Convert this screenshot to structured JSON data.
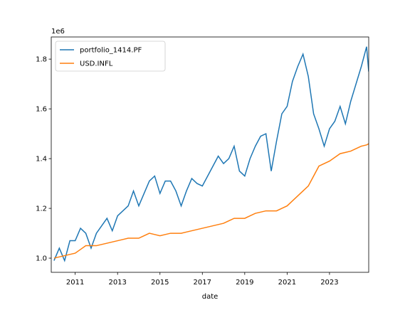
{
  "chart_data": {
    "type": "line",
    "xlabel": "date",
    "offset_text": "1e6",
    "x": [
      2010.0,
      2010.25,
      2010.5,
      2010.75,
      2011.0,
      2011.25,
      2011.5,
      2011.75,
      2012.0,
      2012.25,
      2012.5,
      2012.75,
      2013.0,
      2013.25,
      2013.5,
      2013.75,
      2014.0,
      2014.25,
      2014.5,
      2014.75,
      2015.0,
      2015.25,
      2015.5,
      2015.75,
      2016.0,
      2016.25,
      2016.5,
      2016.75,
      2017.0,
      2017.25,
      2017.5,
      2017.75,
      2018.0,
      2018.25,
      2018.5,
      2018.75,
      2019.0,
      2019.25,
      2019.5,
      2019.75,
      2020.0,
      2020.25,
      2020.5,
      2020.75,
      2021.0,
      2021.25,
      2021.5,
      2021.75,
      2022.0,
      2022.25,
      2022.5,
      2022.75,
      2023.0,
      2023.25,
      2023.5,
      2023.75,
      2024.0,
      2024.25,
      2024.5,
      2024.75,
      2024.85
    ],
    "series": [
      {
        "name": "portfolio_1414.PF",
        "color": "#1f77b4",
        "values": [
          0.99,
          1.04,
          0.99,
          1.07,
          1.07,
          1.12,
          1.1,
          1.04,
          1.1,
          1.13,
          1.16,
          1.11,
          1.17,
          1.19,
          1.21,
          1.27,
          1.21,
          1.26,
          1.31,
          1.33,
          1.26,
          1.31,
          1.31,
          1.27,
          1.21,
          1.27,
          1.32,
          1.3,
          1.29,
          1.33,
          1.37,
          1.41,
          1.38,
          1.4,
          1.45,
          1.35,
          1.33,
          1.4,
          1.45,
          1.49,
          1.5,
          1.35,
          1.47,
          1.58,
          1.61,
          1.71,
          1.77,
          1.82,
          1.73,
          1.58,
          1.52,
          1.45,
          1.52,
          1.55,
          1.61,
          1.54,
          1.63,
          1.7,
          1.77,
          1.85,
          1.75
        ]
      },
      {
        "name": "USD.INFL",
        "color": "#ff7f0e",
        "values": [
          1.0,
          1.005,
          1.01,
          1.015,
          1.02,
          1.035,
          1.05,
          1.05,
          1.05,
          1.055,
          1.06,
          1.065,
          1.07,
          1.075,
          1.08,
          1.08,
          1.08,
          1.09,
          1.1,
          1.095,
          1.09,
          1.095,
          1.1,
          1.1,
          1.1,
          1.105,
          1.11,
          1.115,
          1.12,
          1.125,
          1.13,
          1.135,
          1.14,
          1.15,
          1.16,
          1.16,
          1.16,
          1.17,
          1.18,
          1.185,
          1.19,
          1.19,
          1.19,
          1.2,
          1.21,
          1.23,
          1.25,
          1.27,
          1.29,
          1.33,
          1.37,
          1.38,
          1.39,
          1.405,
          1.42,
          1.425,
          1.43,
          1.44,
          1.45,
          1.455,
          1.46
        ]
      }
    ],
    "xlim": [
      2009.87,
      2024.85
    ],
    "xticks": [
      2011,
      2013,
      2015,
      2017,
      2019,
      2021,
      2023
    ],
    "ylim": [
      0.943,
      1.889
    ],
    "yticks": [
      {
        "value": 1.0,
        "label": "1.0"
      },
      {
        "value": 1.2,
        "label": "1.2"
      },
      {
        "value": 1.4,
        "label": "1.4"
      },
      {
        "value": 1.6,
        "label": "1.6"
      },
      {
        "value": 1.8,
        "label": "1.8"
      }
    ],
    "legend": "upper left"
  }
}
